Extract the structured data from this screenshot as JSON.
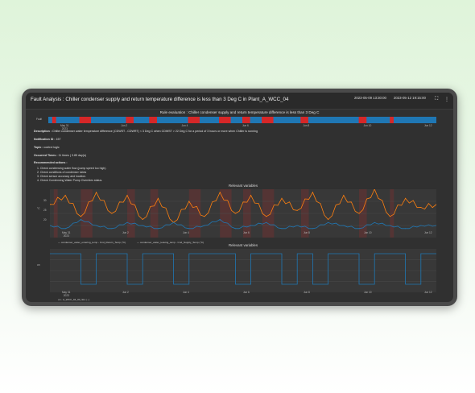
{
  "header": {
    "title": "Fault Analysis : Chiller condenser supply and return temperature difference is less than 3 Deg C in Plant_A_WCC_04",
    "start_date": "2023-05-09 13:30:00",
    "end_date": "2023-05-12 19:15:00",
    "fullscreen_icon": "fullscreen-icon",
    "menu_icon": "more-vert-icon"
  },
  "rule": {
    "title": "Rule evaluation : Chiller condenser supply and return temperature difference is less than 3 Deg C",
    "row_label": "Fault",
    "ticks": [
      "May 31\n2023",
      "Jun 2",
      "Jun 4",
      "Jun 6",
      "Jun 8",
      "Jun 10",
      "Jun 12"
    ],
    "colors": {
      "ok": "#1f77b4",
      "fault": "#d62728"
    }
  },
  "details": {
    "description_label": "Description :",
    "description": "Chiller condenser water temperature difference (CDWST - CDWRT) < 3 Deg C when CDWST > 22 Deg C for a period of 3 hours or more when Chiller is running",
    "notification_label": "Notification ID :",
    "notification_value": "157",
    "topic_label": "Topic :",
    "topic_value": "control logic",
    "occurred_label": "Occurred Times :",
    "occurred_value": "11 times ( 3.85 day(s)",
    "recommended_label": "Recommended actions :",
    "actions": [
      "1. Check condensing water flow (pump speed too high).",
      "2. Check conditions of condenser tubes",
      "3. Check sensor accuracy and location.",
      "4. Check Condensing Water Pump Overrides status."
    ]
  },
  "panel1": {
    "title": "Relevant variables",
    "ylabel": "°C",
    "y_ticks": [
      "30",
      "25",
      "20"
    ],
    "x_ticks": [
      "May 31\n2023",
      "Jun 2",
      "Jun 4",
      "Jun 6",
      "Jun 8",
      "Jun 10",
      "Jun 12"
    ],
    "legend": [
      "— condenser_water_entering_temp - Cnd_Return_Temp (°C)",
      "— condenser_water_leaving_temp - Cnd_Supply_Temp (°C)"
    ]
  },
  "panel2": {
    "title": "Relevant variables",
    "ylabel": "on",
    "x_ticks": [
      "May 31\n2023",
      "Jun 2",
      "Jun 4",
      "Jun 6",
      "Jun 8",
      "Jun 10",
      "Jun 12"
    ],
    "legend": [
      "on - A_WCC_04_00_Sts (...)"
    ]
  },
  "chart_data": [
    {
      "type": "bar",
      "title": "Rule evaluation : Chiller condenser supply and return temperature difference is less than 3 Deg C",
      "categories": [
        "Fault"
      ],
      "series": [
        {
          "name": "fault",
          "intervals": [
            [
              0.01,
              0.02
            ],
            [
              0.08,
              0.11
            ],
            [
              0.2,
              0.22
            ],
            [
              0.26,
              0.28
            ],
            [
              0.36,
              0.39
            ],
            [
              0.44,
              0.47
            ],
            [
              0.5,
              0.52
            ],
            [
              0.55,
              0.58
            ],
            [
              0.65,
              0.67
            ],
            [
              0.8,
              0.82
            ],
            [
              0.88,
              0.89
            ]
          ]
        }
      ],
      "colors": {
        "ok": "#1f77b4",
        "fault": "#d62728"
      }
    },
    {
      "type": "line",
      "title": "Relevant variables",
      "ylabel": "°C",
      "ylim": [
        17,
        33
      ],
      "x": [
        0,
        0.04,
        0.08,
        0.12,
        0.16,
        0.2,
        0.24,
        0.28,
        0.32,
        0.36,
        0.4,
        0.44,
        0.48,
        0.52,
        0.56,
        0.6,
        0.64,
        0.68,
        0.72,
        0.76,
        0.8,
        0.84,
        0.88,
        0.92,
        0.96,
        1.0
      ],
      "series": [
        {
          "name": "condenser_water_entering_temp - Cnd_Return_Temp (°C)",
          "color": "#ff7f0e",
          "values": [
            28,
            31,
            24,
            32,
            25,
            31,
            23,
            30,
            22,
            29,
            24,
            32,
            25,
            31,
            24,
            30,
            26,
            32,
            23,
            31,
            25,
            33,
            24,
            30,
            27,
            28
          ]
        },
        {
          "name": "condenser_water_leaving_temp - Cnd_Supply_Temp (°C)",
          "color": "#1f77b4",
          "values": [
            21,
            20,
            23,
            21,
            20,
            22,
            21,
            20,
            22,
            20,
            21,
            23,
            20,
            21,
            22,
            20,
            21,
            20,
            22,
            21,
            20,
            22,
            21,
            20,
            21,
            21
          ]
        }
      ]
    },
    {
      "type": "line",
      "title": "Relevant variables",
      "ylim": [
        0,
        1
      ],
      "x": [
        0,
        0.04,
        0.08,
        0.12,
        0.16,
        0.2,
        0.24,
        0.28,
        0.32,
        0.36,
        0.4,
        0.44,
        0.48,
        0.52,
        0.56,
        0.6,
        0.64,
        0.68,
        0.72,
        0.76,
        0.8,
        0.84,
        0.88,
        0.92,
        0.96,
        1.0
      ],
      "series": [
        {
          "name": "A_WCC_04_00_Sts",
          "color": "#1f77b4",
          "values": [
            1,
            1,
            0,
            1,
            1,
            0,
            1,
            1,
            0,
            1,
            1,
            1,
            0,
            1,
            1,
            0,
            1,
            0,
            1,
            1,
            0,
            1,
            1,
            0,
            1,
            1
          ]
        }
      ]
    }
  ]
}
